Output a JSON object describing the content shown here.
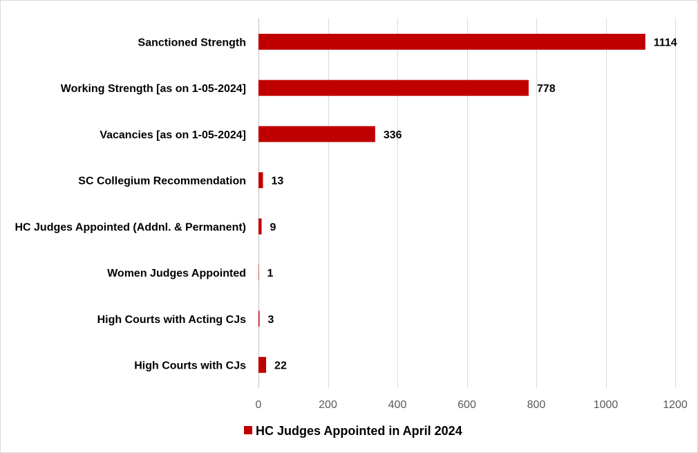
{
  "chart_data": {
    "type": "bar",
    "orientation": "horizontal",
    "title": "",
    "xlabel": "",
    "ylabel": "",
    "categories": [
      "Sanctioned Strength",
      "Working Strength [as on 1-05-2024]",
      "Vacancies [as on 1-05-2024]",
      "SC Collegium Recommendation",
      "HC Judges Appointed (Addnl. & Permanent)",
      "Women Judges Appointed",
      "High Courts with Acting CJs",
      "High Courts with CJs"
    ],
    "series": [
      {
        "name": "HC Judges Appointed in April 2024",
        "color": "#c00000",
        "values": [
          1114,
          778,
          336,
          13,
          9,
          1,
          3,
          22
        ]
      }
    ],
    "xlim": [
      0,
      1200
    ],
    "xticks": [
      0,
      200,
      400,
      600,
      800,
      1000,
      1200
    ],
    "grid": true,
    "legend": "bottom",
    "data_labels": true
  }
}
